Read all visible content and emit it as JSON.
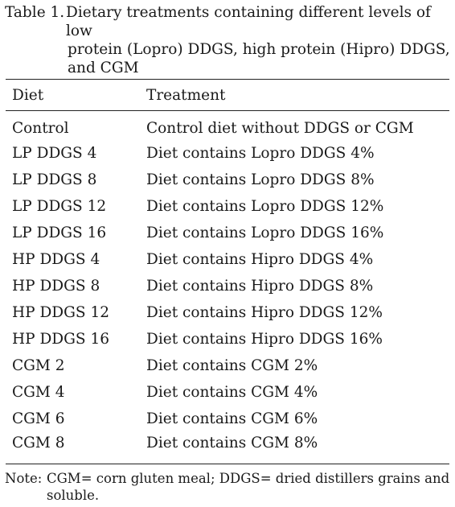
{
  "caption": {
    "label": "Table 1.",
    "line1": "Dietary treatments containing different levels of low",
    "line2": "protein (Lopro) DDGS, high protein (Hipro) DDGS,",
    "line3": "and CGM"
  },
  "table": {
    "headers": [
      "Diet",
      "Treatment"
    ],
    "rows": [
      [
        "Control",
        "Control diet without DDGS or CGM"
      ],
      [
        "LP DDGS 4",
        "Diet contains Lopro DDGS 4%"
      ],
      [
        "LP DDGS 8",
        "Diet contains Lopro DDGS 8%"
      ],
      [
        "LP DDGS 12",
        "Diet contains Lopro DDGS 12%"
      ],
      [
        "LP DDGS 16",
        "Diet contains Lopro DDGS 16%"
      ],
      [
        "HP DDGS 4",
        "Diet contains Hipro DDGS 4%"
      ],
      [
        "HP DDGS 8",
        "Diet contains Hipro DDGS 8%"
      ],
      [
        "HP DDGS 12",
        "Diet contains Hipro DDGS 12%"
      ],
      [
        "HP DDGS 16",
        "Diet contains Hipro DDGS 16%"
      ],
      [
        "CGM 2",
        "Diet contains CGM 2%"
      ],
      [
        "CGM 4",
        "Diet contains CGM 4%"
      ],
      [
        "CGM 6",
        "Diet contains CGM 6%"
      ],
      [
        "CGM 8",
        "Diet contains CGM 8%"
      ]
    ]
  },
  "note": {
    "prefix": "Note:",
    "line1": "CGM= corn gluten meal; DDGS= dried distillers grains and",
    "line2": "soluble."
  }
}
